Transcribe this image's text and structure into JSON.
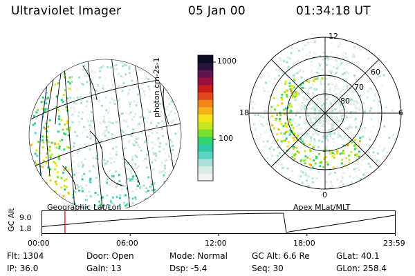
{
  "header": {
    "instrument": "Ultraviolet Imager",
    "date": "05 Jan 00",
    "time": "01:34:18 UT"
  },
  "colorbar": {
    "unit_label": "photon cm-2s-1",
    "ticks": [
      "1000",
      "100"
    ],
    "colors": [
      "#f2f2f2",
      "#d9ebe6",
      "#a8dfd6",
      "#5fd0c4",
      "#2cc9a6",
      "#2fd56a",
      "#7be02c",
      "#c7e61d",
      "#f4e31b",
      "#f7b21a",
      "#f3861a",
      "#e2461c",
      "#c81d1d",
      "#9b0e3e",
      "#62134f",
      "#2a1240",
      "#0c0c24"
    ]
  },
  "geo_panel": {
    "label": "Geographic Lat/Lon"
  },
  "polar_panel": {
    "label": "Apex MLat/MLT",
    "lat_labels": [
      "60",
      "70",
      "80"
    ],
    "mlt_labels": {
      "top": "12",
      "left": "18",
      "right": "6",
      "bottom": "0"
    }
  },
  "timeline": {
    "axis_label": "GC Alt",
    "y_ticks": [
      "9.0",
      "1.8"
    ],
    "x_ticks": [
      "00:00",
      "06:00",
      "12:00",
      "18:00",
      "23:59"
    ],
    "current_time_hours": 1.57
  },
  "info": {
    "flt": "Flt: 1304",
    "ip": "IP: 36.0",
    "door": "Door: Open",
    "gain": "Gain: 13",
    "mode": "Mode: Normal",
    "dsp": "Dsp:    -5.4",
    "gcalt": "GC Alt: 6.6 Re",
    "seq": "Seq: 30",
    "glat": "GLat:  40.1",
    "glon": "GLon: 258.4"
  }
}
